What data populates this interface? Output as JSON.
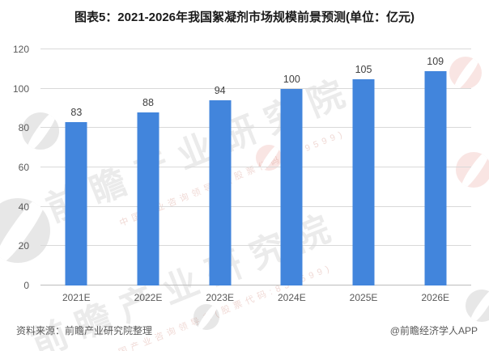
{
  "title": "图表5：2021-2026年我国絮凝剂市场规模前景预测(单位：亿元)",
  "chart_data": {
    "type": "bar",
    "title": "图表5：2021-2026年我国絮凝剂市场规模前景预测",
    "unit": "亿元",
    "categories": [
      "2021E",
      "2022E",
      "2023E",
      "2024E",
      "2025E",
      "2026E"
    ],
    "values": [
      83,
      88,
      94,
      100,
      105,
      109
    ],
    "xlabel": "",
    "ylabel": "",
    "ylim": [
      0,
      120
    ],
    "yticks": [
      0,
      20,
      40,
      60,
      80,
      100,
      120
    ],
    "grid": true,
    "legend_position": "none",
    "bar_color": "#4285dc",
    "value_label_color": "#404040"
  },
  "footer": {
    "source": "资料来源：前瞻产业研究院整理",
    "credit": "@前瞻经济学人APP"
  },
  "watermark": {
    "text": "前瞻产业研究院",
    "subtext": "中国产业咨询领导者(股票代码:839599)",
    "logo": "qianzhan-logo-icon"
  },
  "colors": {
    "bar": "#4285dc",
    "grid": "#d9d9d9",
    "axis_line": "#bdbdbd",
    "tick_text": "#595959",
    "title_text": "#1a1a1a",
    "footer_text": "#595959"
  }
}
